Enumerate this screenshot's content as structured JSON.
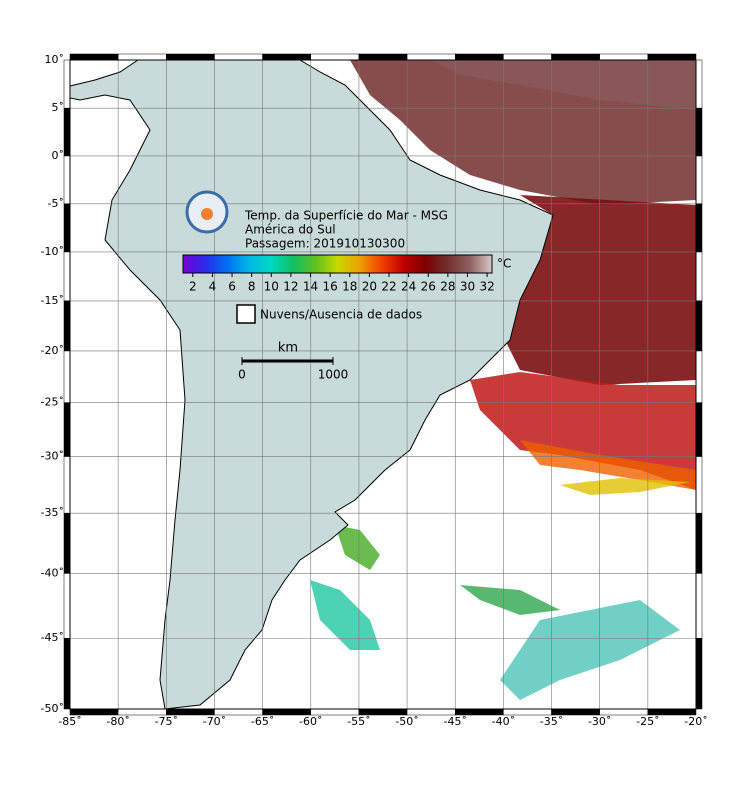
{
  "map": {
    "type": "map",
    "projection": "mercator",
    "grid": true,
    "xlim": [
      -85,
      -20
    ],
    "ylim": [
      -50,
      10
    ],
    "xticks": [
      {
        "value": -85,
        "label": "-85˚"
      },
      {
        "value": -80,
        "label": "-80˚"
      },
      {
        "value": -75,
        "label": "-75˚"
      },
      {
        "value": -70,
        "label": "-70˚"
      },
      {
        "value": -65,
        "label": "-65˚"
      },
      {
        "value": -60,
        "label": "-60˚"
      },
      {
        "value": -55,
        "label": "-55˚"
      },
      {
        "value": -50,
        "label": "-50˚"
      },
      {
        "value": -45,
        "label": "-45˚"
      },
      {
        "value": -40,
        "label": "-40˚"
      },
      {
        "value": -35,
        "label": "-35˚"
      },
      {
        "value": -30,
        "label": "-30˚"
      },
      {
        "value": -25,
        "label": "-25˚"
      },
      {
        "value": -20,
        "label": "-20˚"
      }
    ],
    "yticks": [
      {
        "value": 10,
        "label": "10˚"
      },
      {
        "value": 5,
        "label": "5˚"
      },
      {
        "value": 0,
        "label": "0˚"
      },
      {
        "value": -5,
        "label": "-5˚"
      },
      {
        "value": -10,
        "label": "-10˚"
      },
      {
        "value": -15,
        "label": "-15˚"
      },
      {
        "value": -20,
        "label": "-20˚"
      },
      {
        "value": -25,
        "label": "-25˚"
      },
      {
        "value": -30,
        "label": "-30˚"
      },
      {
        "value": -35,
        "label": "-35˚"
      },
      {
        "value": -40,
        "label": "-40˚"
      },
      {
        "value": -45,
        "label": "-45˚"
      },
      {
        "value": -50,
        "label": "-50˚"
      }
    ]
  },
  "legend": {
    "title_lines": [
      "Temp. da Superfície do Mar - MSG",
      "América do Sul",
      "Passagem: 201910130300"
    ],
    "colorbar": {
      "clim": [
        1,
        32.5
      ],
      "ticks": [
        2,
        4,
        6,
        8,
        10,
        12,
        14,
        16,
        18,
        20,
        22,
        24,
        26,
        28,
        30,
        32
      ],
      "unit": "°C",
      "colors": [
        "#7a00d8",
        "#2a2ae8",
        "#0070f0",
        "#00b8e8",
        "#00d8c0",
        "#10c060",
        "#60c020",
        "#c8d800",
        "#f0a000",
        "#f04000",
        "#c00000",
        "#800000",
        "#703030",
        "#906060",
        "#d8c8c8"
      ]
    },
    "cloud_label": "Nuvens/Ausencia de dados",
    "scale": {
      "unit": "km",
      "ticks": [
        0,
        1000
      ]
    }
  }
}
